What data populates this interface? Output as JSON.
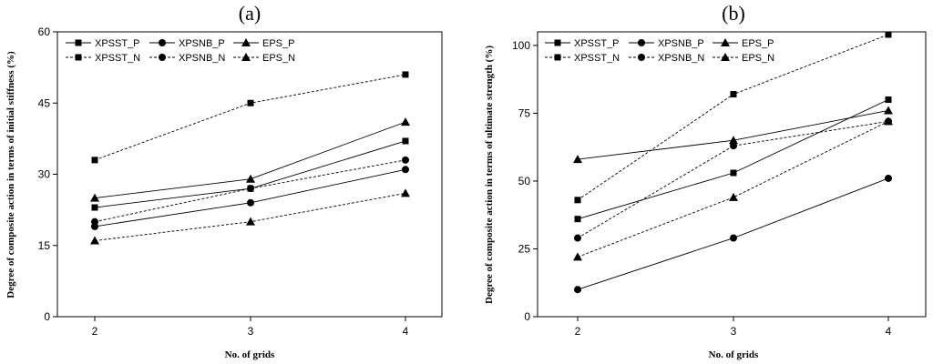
{
  "chart_data": [
    {
      "type": "line",
      "panel_label": "(a)",
      "title": "",
      "xlabel": "No. of grids",
      "ylabel": "Degree of composite action in terms of initial stiffness (%)",
      "x": [
        2,
        3,
        4
      ],
      "xticks": [
        "2",
        "3",
        "4"
      ],
      "ylim": [
        0,
        60
      ],
      "yticks": [
        "0",
        "15",
        "30",
        "45",
        "60"
      ],
      "legend_position": "top-left",
      "series": [
        {
          "name": "XPSST_P",
          "marker": "square",
          "line": "solid",
          "values": [
            23,
            27,
            37
          ]
        },
        {
          "name": "XPSNB_P",
          "marker": "circle",
          "line": "solid",
          "values": [
            19,
            24,
            31
          ]
        },
        {
          "name": "EPS_P",
          "marker": "triangle",
          "line": "solid",
          "values": [
            25,
            29,
            41
          ]
        },
        {
          "name": "XPSST_N",
          "marker": "square",
          "line": "dashed",
          "values": [
            33,
            45,
            51
          ]
        },
        {
          "name": "XPSNB_N",
          "marker": "circle",
          "line": "dashed",
          "values": [
            20,
            27,
            33
          ]
        },
        {
          "name": "EPS_N",
          "marker": "triangle",
          "line": "dashed",
          "values": [
            16,
            20,
            26
          ]
        }
      ]
    },
    {
      "type": "line",
      "panel_label": "(b)",
      "title": "",
      "xlabel": "No. of grids",
      "ylabel": "Degree of composite action in terms of ultimate strength (%)",
      "x": [
        2,
        3,
        4
      ],
      "xticks": [
        "2",
        "3",
        "4"
      ],
      "ylim": [
        0,
        105
      ],
      "yticks": [
        "0",
        "25",
        "50",
        "75",
        "100"
      ],
      "legend_position": "top-left",
      "series": [
        {
          "name": "XPSST_P",
          "marker": "square",
          "line": "solid",
          "values": [
            36,
            53,
            80
          ]
        },
        {
          "name": "XPSNB_P",
          "marker": "circle",
          "line": "solid",
          "values": [
            10,
            29,
            51
          ]
        },
        {
          "name": "EPS_P",
          "marker": "triangle",
          "line": "solid",
          "values": [
            58,
            65,
            76
          ]
        },
        {
          "name": "XPSST_N",
          "marker": "square",
          "line": "dashed",
          "values": [
            43,
            82,
            104
          ]
        },
        {
          "name": "XPSNB_N",
          "marker": "circle",
          "line": "dashed",
          "values": [
            29,
            63,
            72
          ]
        },
        {
          "name": "EPS_N",
          "marker": "triangle",
          "line": "dashed",
          "values": [
            22,
            44,
            72
          ]
        }
      ]
    }
  ]
}
